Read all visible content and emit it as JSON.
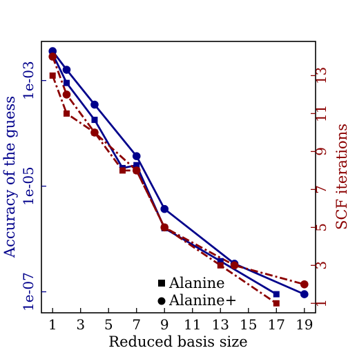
{
  "chart_data": {
    "type": "line",
    "xlabel": "Reduced basis size",
    "ylabel_left": "Accuracy of the guess",
    "ylabel_right": "SCF iterations",
    "xlim": [
      0.2,
      19.8
    ],
    "x_ticks": [
      1,
      3,
      5,
      7,
      9,
      11,
      13,
      15,
      17,
      19
    ],
    "y_left_scale": "log",
    "y_left_range": [
      4e-08,
      0.0055
    ],
    "y_left_ticks": [
      {
        "value": 0.001,
        "label": "1e-03"
      },
      {
        "value": 1e-05,
        "label": "1e-05"
      },
      {
        "value": 1e-07,
        "label": "1e-07"
      }
    ],
    "y_right_range": [
      0.5,
      14.8
    ],
    "y_right_ticks": [
      1,
      3,
      5,
      7,
      9,
      11,
      13
    ],
    "grid": false,
    "legend_position": "bottom-center",
    "colors": {
      "accuracy": "#00008B",
      "iterations": "#8B0000",
      "axis": "#000000"
    },
    "legend": [
      {
        "label": "Alanine",
        "marker": "square"
      },
      {
        "label": "Alanine+",
        "marker": "circle"
      }
    ],
    "series": [
      {
        "legend": "Alanine",
        "axis": "left",
        "marker": "square",
        "line": "solid",
        "x": [
          1,
          2,
          4,
          6,
          7,
          9,
          13,
          17
        ],
        "y": [
          0.0032,
          0.0009,
          0.00018,
          2.2e-05,
          2.5e-05,
          1.6e-06,
          3.8e-07,
          9e-08
        ]
      },
      {
        "legend": "Alanine+",
        "axis": "left",
        "marker": "circle",
        "line": "solid",
        "x": [
          1,
          2,
          4,
          7,
          9,
          14,
          19
        ],
        "y": [
          0.0036,
          0.0016,
          0.00035,
          3.7e-05,
          3.7e-06,
          3.4e-07,
          9e-08
        ]
      },
      {
        "legend": "Alanine",
        "axis": "right",
        "marker": "square",
        "line": "dashdot",
        "x": [
          1,
          2,
          4,
          6,
          7,
          9,
          13,
          17
        ],
        "y": [
          13,
          11,
          10,
          8,
          8,
          5,
          3,
          1
        ]
      },
      {
        "legend": "Alanine+",
        "axis": "right",
        "marker": "circle",
        "line": "dashdot",
        "x": [
          1,
          2,
          4,
          7,
          9,
          14,
          19
        ],
        "y": [
          14,
          12,
          10,
          8,
          5,
          3,
          2
        ]
      }
    ]
  }
}
